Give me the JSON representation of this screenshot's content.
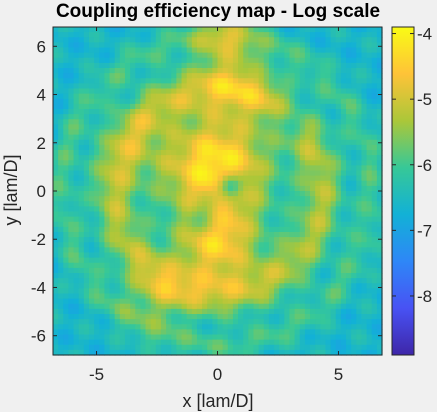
{
  "chart_data": {
    "type": "heatmap",
    "title": "Coupling efficiency map - Log scale",
    "xlabel": "x [lam/D]",
    "ylabel": "y [lam/D]",
    "xlim": [
      -6.8,
      6.8
    ],
    "ylim": [
      -6.8,
      6.8
    ],
    "x_ticks": [
      -5,
      0,
      5
    ],
    "x_tick_labels": [
      "-5",
      "0",
      "5"
    ],
    "y_ticks": [
      6,
      4,
      2,
      0,
      -2,
      -4,
      -6
    ],
    "y_tick_labels": [
      "6",
      "4",
      "2",
      "0",
      "-2",
      "-4",
      "-6"
    ],
    "colorbar": {
      "colormap": "parula",
      "clim": [
        -8.9,
        -3.9
      ],
      "ticks": [
        -4,
        -5,
        -6,
        -7,
        -8
      ],
      "tick_labels": [
        "-4",
        "-5",
        "-6",
        "-7",
        "-8"
      ]
    },
    "features": [
      {
        "kind": "central peak",
        "x": 0,
        "y": 1,
        "value": -4.1
      },
      {
        "kind": "lobe",
        "x": 0,
        "y": -2.2,
        "value": -4.5
      },
      {
        "kind": "lobe",
        "x": 0.8,
        "y": 4.3,
        "value": -4.8
      },
      {
        "kind": "lobe",
        "x": 0.3,
        "y": 6.3,
        "value": -4.6
      },
      {
        "kind": "lobe",
        "x": -2.5,
        "y": -4.4,
        "value": -5.0
      },
      {
        "kind": "ring",
        "radius": 4.3,
        "value": -5.3
      },
      {
        "kind": "dark null",
        "x": 0.5,
        "y": 0.2,
        "value": -6.5
      }
    ],
    "grid": false
  }
}
